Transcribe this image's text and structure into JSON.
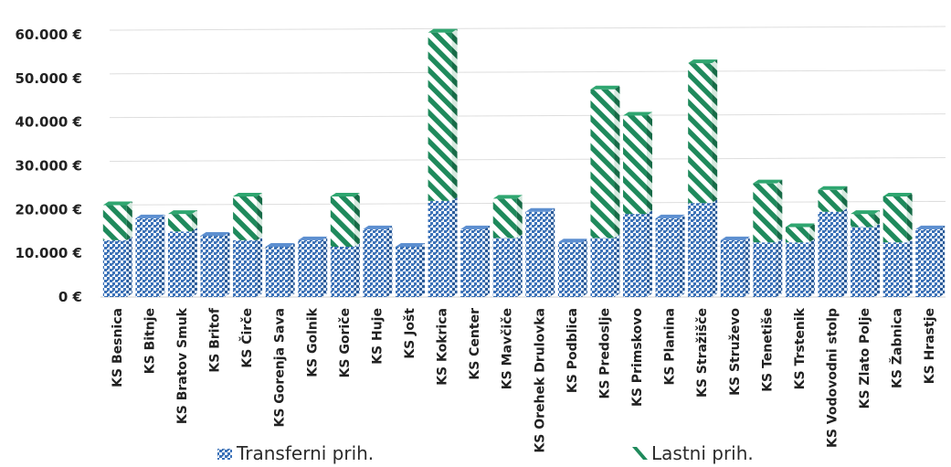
{
  "chart_data": {
    "type": "bar",
    "stacked": true,
    "three_d": true,
    "title": "",
    "xlabel": "",
    "ylabel": "",
    "ylim": [
      0,
      60000
    ],
    "yticks": [
      0,
      10000,
      20000,
      30000,
      40000,
      50000,
      60000
    ],
    "ytick_labels": [
      "0 €",
      "10.000 €",
      "20.000 €",
      "30.000 €",
      "40.000 €",
      "50.000 €",
      "60.000 €"
    ],
    "grid": true,
    "legend": "bottom",
    "categories": [
      "KS Besnica",
      "KS Bitnje",
      "KS Bratov Smuk",
      "KS Britof",
      "KS Čirče",
      "KS Gorenja Sava",
      "KS Golnik",
      "KS Goriče",
      "KS Huje",
      "KS Jošt",
      "KS Kokrica",
      "KS Center",
      "KS Mavčiče",
      "KS Orehek Drulovka",
      "KS Podblica",
      "KS Predoslje",
      "KS Primskovo",
      "KS Planina",
      "KS Stražišče",
      "KS Struževo",
      "KS Tenetiše",
      "KS Trstenik",
      "KS Vodovodni stolp",
      "KS Zlato Polje",
      "KS Žabnica",
      "KS Hrastje"
    ],
    "series": [
      {
        "name": "Transferni prih.",
        "color": "#3b72b9",
        "pattern": "dots",
        "values": [
          13000,
          18000,
          15000,
          14000,
          13000,
          11500,
          13000,
          11500,
          15500,
          11500,
          22000,
          15500,
          13500,
          19500,
          12500,
          13500,
          19000,
          18000,
          21500,
          13000,
          12500,
          12500,
          19500,
          16000,
          12500,
          15500
        ]
      },
      {
        "name": "Lastni prih.",
        "color": "#1f8a5c",
        "pattern": "diagonal-stripes",
        "values": [
          8000,
          0,
          4000,
          0,
          10000,
          0,
          0,
          11500,
          0,
          0,
          38500,
          0,
          9000,
          0,
          0,
          34000,
          22500,
          0,
          32000,
          0,
          13500,
          3500,
          5000,
          3000,
          10500,
          0
        ]
      }
    ]
  }
}
